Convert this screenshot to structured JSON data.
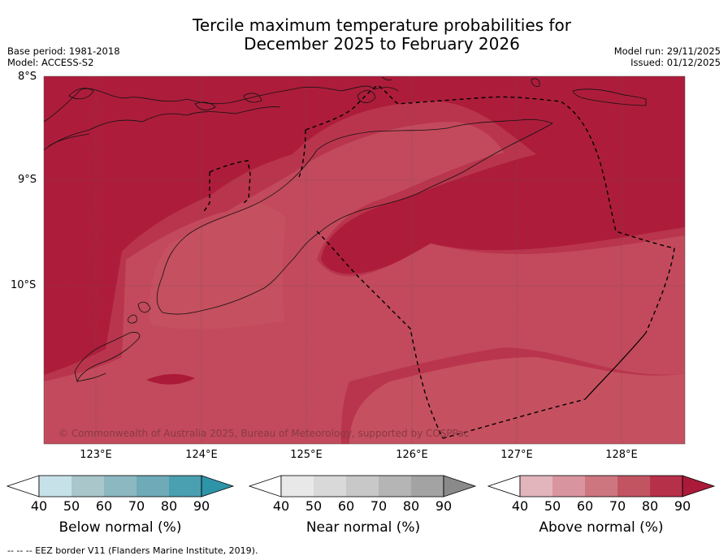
{
  "title": {
    "line1": "Tercile maximum temperature probabilities for",
    "line2": "December 2025 to February 2026"
  },
  "meta": {
    "base_period": "Base period: 1981-2018",
    "model": "Model: ACCESS-S2",
    "model_run": "Model run: 29/11/2025",
    "issued": "Issued: 01/12/2025"
  },
  "map": {
    "lat_labels": [
      "8°S",
      "9°S",
      "10°S"
    ],
    "lon_labels": [
      "123°E",
      "124°E",
      "125°E",
      "126°E",
      "127°E",
      "128°E"
    ],
    "copyright": "© Commonwealth of Australia 2025, Bureau of Meteorology, supported by COSPPac"
  },
  "legends": [
    {
      "name": "below-normal",
      "title": "Below normal (%)",
      "ticks": [
        "40",
        "50",
        "60",
        "70",
        "80",
        "90"
      ],
      "colors": [
        "#ffffff",
        "#c6e1e8",
        "#a9c6cb",
        "#8cb8c2",
        "#6eaab7",
        "#4a9fb0",
        "#2e94a8"
      ]
    },
    {
      "name": "near-normal",
      "title": "Near normal (%)",
      "ticks": [
        "40",
        "50",
        "60",
        "70",
        "80",
        "90"
      ],
      "colors": [
        "#ffffff",
        "#e8e8e8",
        "#d9d9d9",
        "#c8c8c8",
        "#b5b5b5",
        "#a3a3a3",
        "#8a8a8a"
      ]
    },
    {
      "name": "above-normal",
      "title": "Above normal (%)",
      "ticks": [
        "40",
        "50",
        "60",
        "70",
        "80",
        "90"
      ],
      "colors": [
        "#ffffff",
        "#e2b5bd",
        "#d9959f",
        "#cd7680",
        "#c25462",
        "#b7304a",
        "#ab1a39"
      ]
    }
  ],
  "footer": "-- -- -- EEZ border V11 (Flanders Marine Institute, 2019)."
}
